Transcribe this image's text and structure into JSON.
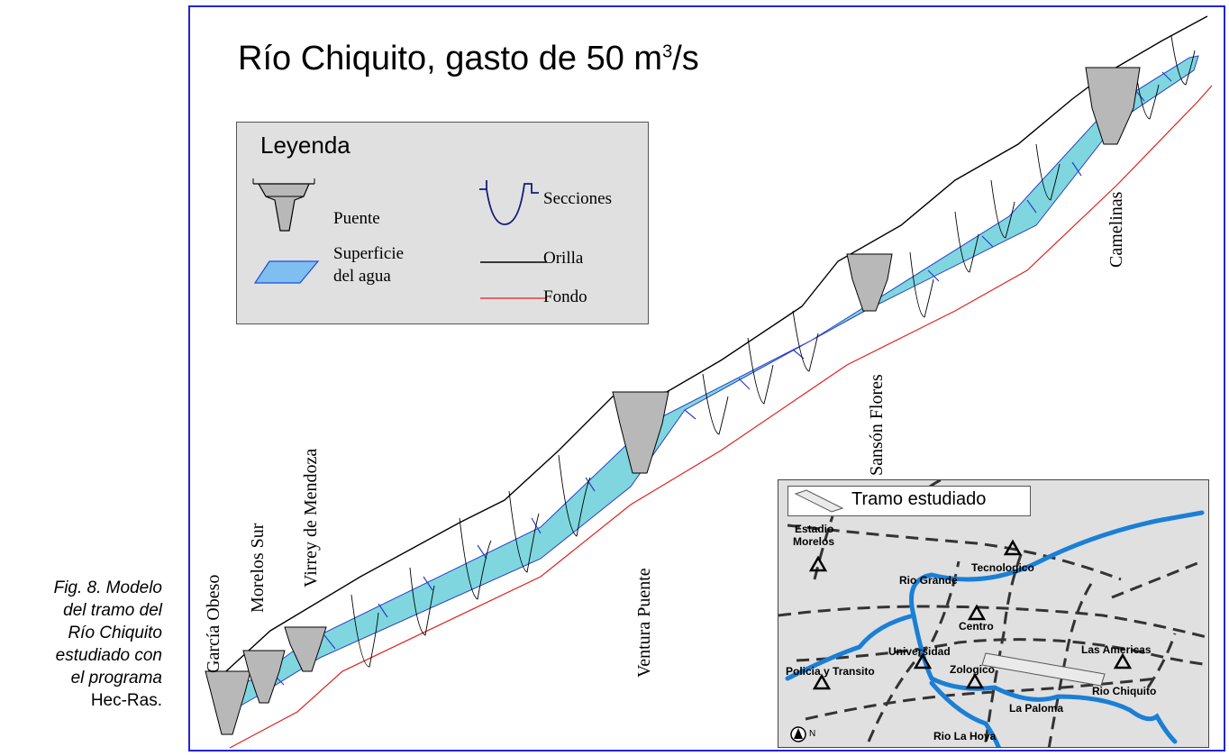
{
  "caption": {
    "line1": "Fig. 8. Modelo",
    "line2": "del tramo del",
    "line3": "Río Chiquito",
    "line4": "estudiado con",
    "line5": "el programa",
    "line6": "Hec-Ras."
  },
  "title": {
    "text": "Río Chiquito, gasto de 50 m",
    "superscript": "3",
    "suffix": "/s"
  },
  "legend": {
    "title": "Leyenda",
    "items": [
      {
        "label": "Puente",
        "icon": "bridge-icon"
      },
      {
        "label": "Secciones",
        "icon": "cross-section-icon"
      },
      {
        "label": "Superficie",
        "label2": "del agua",
        "icon": "water-surface-icon"
      },
      {
        "label": "Orilla",
        "icon": "bank-line-icon"
      },
      {
        "label": "Fondo",
        "icon": "bottom-line-icon"
      }
    ]
  },
  "bridges": [
    {
      "label": "García Obeso"
    },
    {
      "label": "Morelos Sur"
    },
    {
      "label": "Virrey de Mendoza"
    },
    {
      "label": "Ventura Puente"
    },
    {
      "label": "Sansón Flores"
    },
    {
      "label": "Camelinas"
    }
  ],
  "map": {
    "legend_label": "Tramo estudiado",
    "labels": {
      "estadio": "Estadio",
      "morelos": "Morelos",
      "tecnologico": "Tecnologico",
      "rio_grande": "Rio Grande",
      "centro": "Centro",
      "universidad": "Universidad",
      "las_americas": "Las Americas",
      "policia": "Policia y Transito",
      "zologico": "Zologico",
      "rio_chiquito": "Rio Chiquito",
      "la_paloma": "La Paloma",
      "rio_la_hoya": "Rio La Hoya",
      "north": "N"
    }
  },
  "colors": {
    "frame": "#2323d8",
    "water": "#7fd6df",
    "water_lines": "#2b3fc9",
    "bank": "#000000",
    "bottom": "#e02020",
    "section": "#1a1a7a",
    "river": "#1a7fd6",
    "legend_bg": "#e0e0e0"
  }
}
